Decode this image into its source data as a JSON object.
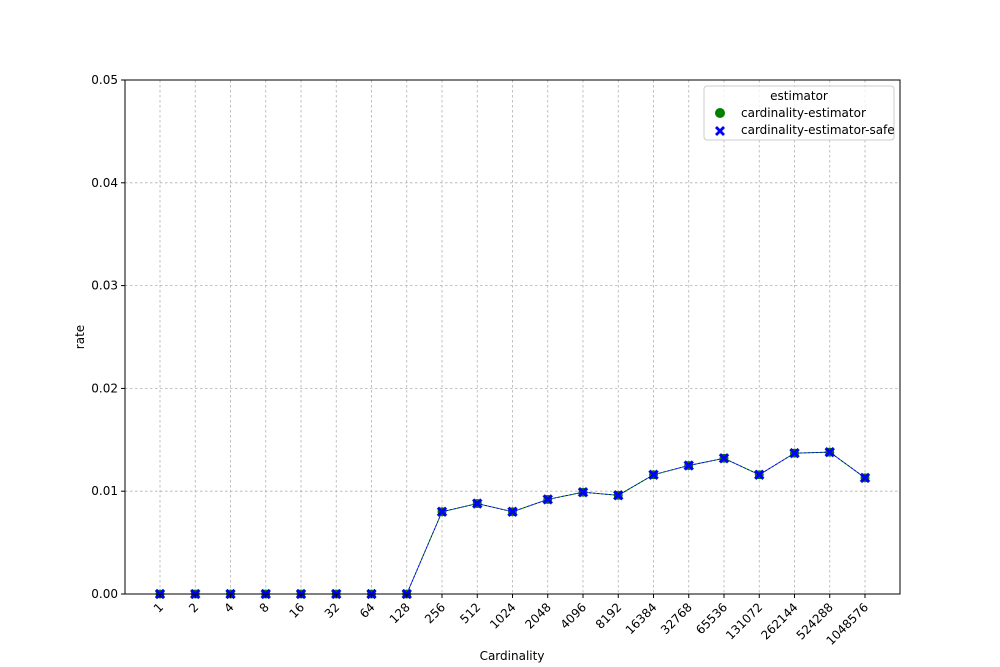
{
  "chart_data": {
    "type": "line",
    "xlabel": "Cardinality",
    "ylabel": "rate",
    "categories": [
      "1",
      "2",
      "4",
      "8",
      "16",
      "32",
      "64",
      "128",
      "256",
      "512",
      "1024",
      "2048",
      "4096",
      "8192",
      "16384",
      "32768",
      "65536",
      "131072",
      "262144",
      "524288",
      "1048576"
    ],
    "ylim": [
      0,
      0.05
    ],
    "yticks": [
      "0.00",
      "0.01",
      "0.02",
      "0.03",
      "0.04",
      "0.05"
    ],
    "grid": true,
    "legend": {
      "title": "estimator",
      "placement": "top-right",
      "entries": [
        "cardinality-estimator",
        "cardinality-estimator-safe"
      ]
    },
    "series": [
      {
        "name": "cardinality-estimator",
        "marker": "circle",
        "color": "#008000",
        "values": [
          0,
          0,
          0,
          0,
          0,
          0,
          0,
          0,
          0.008,
          0.0088,
          0.008,
          0.0092,
          0.0099,
          0.0096,
          0.0116,
          0.0125,
          0.0132,
          0.0116,
          0.0137,
          0.0138,
          0.0113
        ]
      },
      {
        "name": "cardinality-estimator-safe",
        "marker": "x",
        "color": "#0000ff",
        "values": [
          0,
          0,
          0,
          0,
          0,
          0,
          0,
          0,
          0.008,
          0.0088,
          0.008,
          0.0092,
          0.0099,
          0.0096,
          0.0116,
          0.0125,
          0.0132,
          0.0116,
          0.0137,
          0.0138,
          0.0113
        ]
      }
    ]
  }
}
